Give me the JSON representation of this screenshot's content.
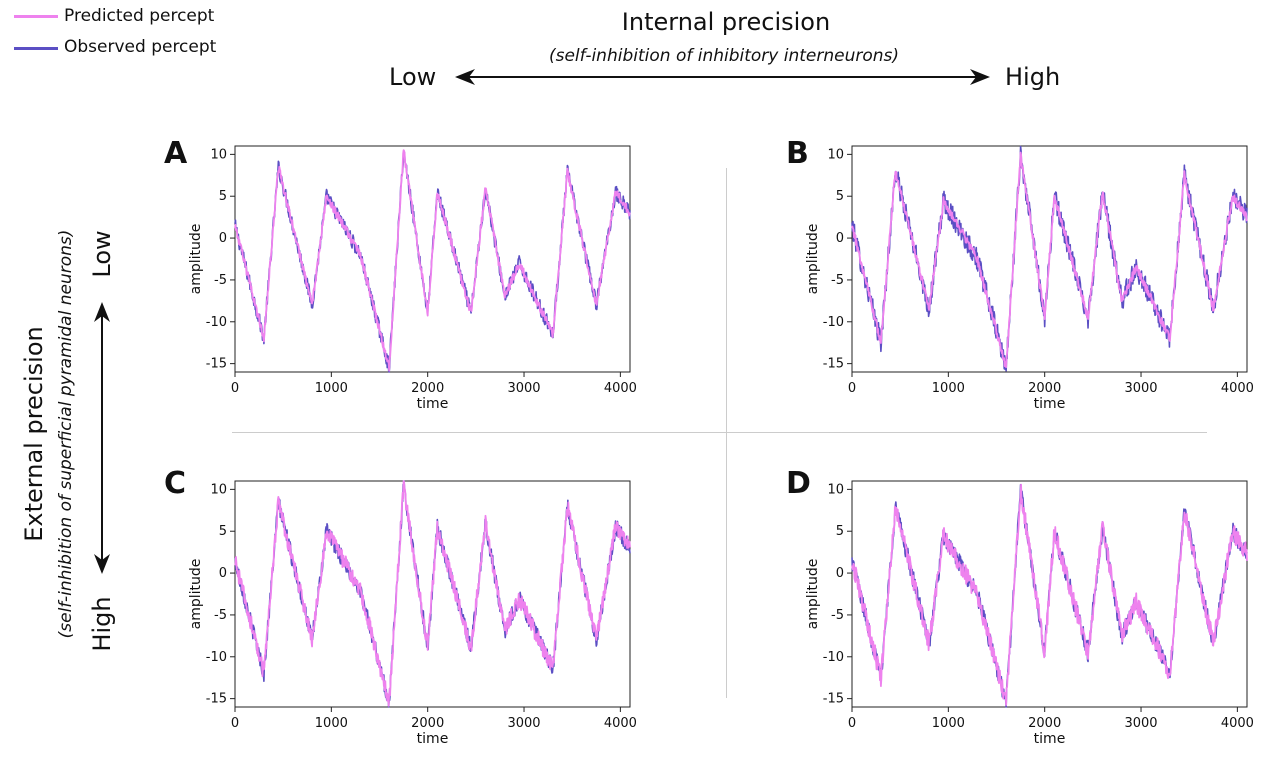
{
  "legend": {
    "predicted_label": "Predicted percept",
    "observed_label": "Observed percept",
    "predicted_color": "#ee82ee",
    "observed_color": "#5b4fc4"
  },
  "internal_precision": {
    "title": "Internal precision",
    "subtitle": "(self-inhibition of inhibitory interneurons)",
    "low_label": "Low",
    "high_label": "High"
  },
  "external_precision": {
    "title": "External precision",
    "subtitle": "(self-inhibition of superficial pyramidal neurons)",
    "low_label": "Low",
    "high_label": "High"
  },
  "chart_data": [
    {
      "type": "line",
      "panel": "A",
      "xlabel": "time",
      "ylabel": "amplitude",
      "xlim": [
        0,
        4100
      ],
      "ylim": [
        -16,
        11
      ],
      "xticks": [
        0,
        1000,
        2000,
        3000,
        4000
      ],
      "yticks": [
        10,
        5,
        0,
        -5,
        -10,
        -15
      ],
      "noise_observed": 0.9,
      "noise_predicted": 0.5,
      "series": [
        {
          "name": "Predicted percept",
          "color": "#ee82ee"
        },
        {
          "name": "Observed percept",
          "color": "#5b4fc4"
        }
      ],
      "x": [
        0,
        300,
        450,
        800,
        950,
        1300,
        1600,
        1750,
        2000,
        2100,
        2450,
        2600,
        2800,
        2950,
        3300,
        3450,
        3750,
        3950,
        4100
      ],
      "y": [
        1.5,
        -12,
        8.5,
        -8,
        5,
        -2,
        -15.5,
        10.5,
        -9,
        5.5,
        -9,
        6,
        -7,
        -3,
        -11.5,
        8,
        -8,
        5.5,
        3
      ]
    },
    {
      "type": "line",
      "panel": "B",
      "xlabel": "time",
      "ylabel": "amplitude",
      "xlim": [
        0,
        4100
      ],
      "ylim": [
        -16,
        11
      ],
      "xticks": [
        0,
        1000,
        2000,
        3000,
        4000
      ],
      "yticks": [
        10,
        5,
        0,
        -5,
        -10,
        -15
      ],
      "noise_observed": 1.3,
      "noise_predicted": 0.5,
      "series": [
        {
          "name": "Predicted percept",
          "color": "#ee82ee"
        },
        {
          "name": "Observed percept",
          "color": "#5b4fc4"
        }
      ],
      "x": [
        0,
        300,
        450,
        800,
        950,
        1300,
        1600,
        1750,
        2000,
        2100,
        2450,
        2600,
        2800,
        2950,
        3300,
        3450,
        3750,
        3950,
        4100
      ],
      "y": [
        1.5,
        -12.5,
        8,
        -8.5,
        4.5,
        -2.5,
        -15.5,
        10,
        -9.5,
        5,
        -9.5,
        5.5,
        -7.5,
        -3.5,
        -12,
        7.5,
        -8.5,
        5,
        2.5
      ]
    },
    {
      "type": "line",
      "panel": "C",
      "xlabel": "time",
      "ylabel": "amplitude",
      "xlim": [
        0,
        4100
      ],
      "ylim": [
        -16,
        11
      ],
      "xticks": [
        0,
        1000,
        2000,
        3000,
        4000
      ],
      "yticks": [
        10,
        5,
        0,
        -5,
        -10,
        -15
      ],
      "noise_observed": 1.0,
      "noise_predicted": 1.0,
      "series": [
        {
          "name": "Predicted percept",
          "color": "#ee82ee"
        },
        {
          "name": "Observed percept",
          "color": "#5b4fc4"
        }
      ],
      "x": [
        0,
        300,
        450,
        800,
        950,
        1300,
        1600,
        1750,
        2000,
        2100,
        2450,
        2600,
        2800,
        2950,
        3300,
        3450,
        3750,
        3950,
        4100
      ],
      "y": [
        1.5,
        -12,
        8.5,
        -8,
        5,
        -2,
        -15.5,
        10.5,
        -9,
        5.5,
        -9,
        6,
        -7,
        -3,
        -11.5,
        8,
        -8,
        5.5,
        3
      ]
    },
    {
      "type": "line",
      "panel": "D",
      "xlabel": "time",
      "ylabel": "amplitude",
      "xlim": [
        0,
        4100
      ],
      "ylim": [
        -16,
        11
      ],
      "xticks": [
        0,
        1000,
        2000,
        3000,
        4000
      ],
      "yticks": [
        10,
        5,
        0,
        -5,
        -10,
        -15
      ],
      "noise_observed": 1.1,
      "noise_predicted": 1.1,
      "series": [
        {
          "name": "Predicted percept",
          "color": "#ee82ee"
        },
        {
          "name": "Observed percept",
          "color": "#5b4fc4"
        }
      ],
      "x": [
        0,
        300,
        450,
        800,
        950,
        1300,
        1600,
        1750,
        2000,
        2100,
        2450,
        2600,
        2800,
        2950,
        3300,
        3450,
        3750,
        3950,
        4100
      ],
      "y": [
        1.5,
        -12.5,
        8,
        -8.5,
        4.5,
        -2.5,
        -15.5,
        10,
        -9.5,
        5,
        -9.5,
        5.5,
        -7.5,
        -3.5,
        -12,
        7.5,
        -8.5,
        5,
        2.5
      ]
    }
  ]
}
